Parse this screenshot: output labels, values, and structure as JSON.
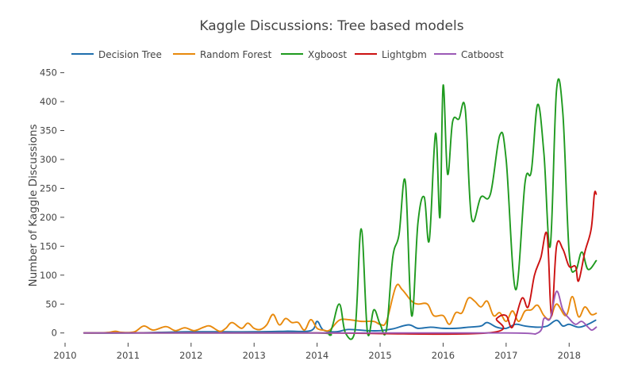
{
  "chart_data": {
    "type": "line",
    "title": "Kaggle Discussions: Tree based models",
    "xlabel": "",
    "ylabel": "Number of Kaggle Discussions",
    "xlim": [
      2010.0,
      2018.45
    ],
    "ylim": [
      -10,
      455
    ],
    "x_ticks": [
      "2010",
      "2011",
      "2012",
      "2013",
      "2014",
      "2015",
      "2016",
      "2017",
      "2018"
    ],
    "y_ticks": [
      "0",
      "50",
      "100",
      "150",
      "200",
      "250",
      "300",
      "350",
      "400",
      "450"
    ],
    "grid": false,
    "legend": "top-left",
    "series": [
      {
        "name": "Decision Tree",
        "color": "#1f6fad",
        "points": [
          [
            2010.3,
            0
          ],
          [
            2011.0,
            0
          ],
          [
            2011.5,
            1
          ],
          [
            2012.0,
            2
          ],
          [
            2012.5,
            2
          ],
          [
            2013.0,
            2
          ],
          [
            2013.5,
            3
          ],
          [
            2013.9,
            4
          ],
          [
            2014.0,
            20
          ],
          [
            2014.1,
            5
          ],
          [
            2014.3,
            2
          ],
          [
            2014.5,
            6
          ],
          [
            2014.8,
            4
          ],
          [
            2015.0,
            4
          ],
          [
            2015.2,
            7
          ],
          [
            2015.45,
            14
          ],
          [
            2015.6,
            8
          ],
          [
            2015.8,
            10
          ],
          [
            2016.0,
            8
          ],
          [
            2016.2,
            8
          ],
          [
            2016.4,
            10
          ],
          [
            2016.6,
            12
          ],
          [
            2016.7,
            18
          ],
          [
            2016.85,
            10
          ],
          [
            2017.0,
            8
          ],
          [
            2017.15,
            15
          ],
          [
            2017.3,
            12
          ],
          [
            2017.5,
            10
          ],
          [
            2017.65,
            12
          ],
          [
            2017.8,
            22
          ],
          [
            2017.9,
            12
          ],
          [
            2018.0,
            15
          ],
          [
            2018.15,
            10
          ],
          [
            2018.3,
            15
          ],
          [
            2018.42,
            22
          ]
        ]
      },
      {
        "name": "Random Forest",
        "color": "#e8890c",
        "points": [
          [
            2010.3,
            0
          ],
          [
            2010.5,
            0
          ],
          [
            2010.7,
            1
          ],
          [
            2010.8,
            3
          ],
          [
            2010.9,
            1
          ],
          [
            2011.1,
            2
          ],
          [
            2011.25,
            12
          ],
          [
            2011.4,
            5
          ],
          [
            2011.6,
            11
          ],
          [
            2011.75,
            4
          ],
          [
            2011.9,
            9
          ],
          [
            2012.05,
            4
          ],
          [
            2012.2,
            10
          ],
          [
            2012.3,
            12
          ],
          [
            2012.45,
            3
          ],
          [
            2012.55,
            8
          ],
          [
            2012.65,
            18
          ],
          [
            2012.8,
            8
          ],
          [
            2012.9,
            17
          ],
          [
            2013.0,
            8
          ],
          [
            2013.1,
            6
          ],
          [
            2013.2,
            14
          ],
          [
            2013.3,
            32
          ],
          [
            2013.4,
            14
          ],
          [
            2013.5,
            25
          ],
          [
            2013.6,
            18
          ],
          [
            2013.7,
            18
          ],
          [
            2013.8,
            5
          ],
          [
            2013.9,
            23
          ],
          [
            2014.0,
            8
          ],
          [
            2014.1,
            5
          ],
          [
            2014.2,
            5
          ],
          [
            2014.35,
            22
          ],
          [
            2014.5,
            23
          ],
          [
            2014.7,
            20
          ],
          [
            2014.9,
            20
          ],
          [
            2015.0,
            15
          ],
          [
            2015.1,
            20
          ],
          [
            2015.25,
            80
          ],
          [
            2015.35,
            75
          ],
          [
            2015.5,
            55
          ],
          [
            2015.6,
            50
          ],
          [
            2015.75,
            50
          ],
          [
            2015.85,
            30
          ],
          [
            2016.0,
            30
          ],
          [
            2016.1,
            15
          ],
          [
            2016.2,
            35
          ],
          [
            2016.3,
            35
          ],
          [
            2016.4,
            60
          ],
          [
            2016.5,
            55
          ],
          [
            2016.6,
            45
          ],
          [
            2016.7,
            55
          ],
          [
            2016.8,
            30
          ],
          [
            2016.9,
            35
          ],
          [
            2017.0,
            20
          ],
          [
            2017.1,
            38
          ],
          [
            2017.2,
            20
          ],
          [
            2017.3,
            38
          ],
          [
            2017.4,
            40
          ],
          [
            2017.5,
            48
          ],
          [
            2017.6,
            30
          ],
          [
            2017.7,
            25
          ],
          [
            2017.8,
            50
          ],
          [
            2017.95,
            30
          ],
          [
            2018.05,
            63
          ],
          [
            2018.15,
            28
          ],
          [
            2018.25,
            45
          ],
          [
            2018.35,
            32
          ],
          [
            2018.43,
            34
          ]
        ]
      },
      {
        "name": "Xgboost",
        "color": "#1f9a1f",
        "points": [
          [
            2010.3,
            0
          ],
          [
            2012.0,
            0
          ],
          [
            2014.0,
            0
          ],
          [
            2014.2,
            0
          ],
          [
            2014.35,
            50
          ],
          [
            2014.45,
            0
          ],
          [
            2014.6,
            3
          ],
          [
            2014.7,
            180
          ],
          [
            2014.8,
            0
          ],
          [
            2014.9,
            40
          ],
          [
            2015.0,
            15
          ],
          [
            2015.1,
            5
          ],
          [
            2015.2,
            130
          ],
          [
            2015.3,
            170
          ],
          [
            2015.4,
            262
          ],
          [
            2015.5,
            30
          ],
          [
            2015.6,
            190
          ],
          [
            2015.7,
            235
          ],
          [
            2015.78,
            160
          ],
          [
            2015.88,
            345
          ],
          [
            2015.95,
            200
          ],
          [
            2016.0,
            428
          ],
          [
            2016.07,
            275
          ],
          [
            2016.15,
            365
          ],
          [
            2016.25,
            370
          ],
          [
            2016.35,
            388
          ],
          [
            2016.45,
            200
          ],
          [
            2016.6,
            235
          ],
          [
            2016.75,
            240
          ],
          [
            2016.9,
            342
          ],
          [
            2017.0,
            300
          ],
          [
            2017.15,
            75
          ],
          [
            2017.3,
            260
          ],
          [
            2017.4,
            280
          ],
          [
            2017.5,
            395
          ],
          [
            2017.6,
            310
          ],
          [
            2017.7,
            150
          ],
          [
            2017.8,
            420
          ],
          [
            2017.9,
            380
          ],
          [
            2018.0,
            140
          ],
          [
            2018.1,
            108
          ],
          [
            2018.2,
            140
          ],
          [
            2018.3,
            110
          ],
          [
            2018.43,
            125
          ]
        ]
      },
      {
        "name": "Lightgbm",
        "color": "#cc1111",
        "points": [
          [
            2010.3,
            0
          ],
          [
            2012.0,
            0
          ],
          [
            2014.0,
            0
          ],
          [
            2016.7,
            0
          ],
          [
            2016.85,
            25
          ],
          [
            2017.0,
            30
          ],
          [
            2017.1,
            10
          ],
          [
            2017.25,
            60
          ],
          [
            2017.35,
            45
          ],
          [
            2017.45,
            100
          ],
          [
            2017.55,
            130
          ],
          [
            2017.65,
            170
          ],
          [
            2017.72,
            30
          ],
          [
            2017.8,
            150
          ],
          [
            2017.9,
            145
          ],
          [
            2018.0,
            115
          ],
          [
            2018.1,
            115
          ],
          [
            2018.15,
            90
          ],
          [
            2018.25,
            140
          ],
          [
            2018.35,
            180
          ],
          [
            2018.4,
            240
          ],
          [
            2018.43,
            240
          ]
        ]
      },
      {
        "name": "Catboost",
        "color": "#9b59b6",
        "points": [
          [
            2010.3,
            0
          ],
          [
            2012.0,
            0
          ],
          [
            2014.0,
            0
          ],
          [
            2017.0,
            0
          ],
          [
            2017.5,
            0
          ],
          [
            2017.6,
            25
          ],
          [
            2017.7,
            25
          ],
          [
            2017.8,
            72
          ],
          [
            2017.9,
            40
          ],
          [
            2018.0,
            25
          ],
          [
            2018.1,
            15
          ],
          [
            2018.2,
            20
          ],
          [
            2018.3,
            10
          ],
          [
            2018.36,
            5
          ],
          [
            2018.43,
            10
          ]
        ]
      }
    ]
  }
}
